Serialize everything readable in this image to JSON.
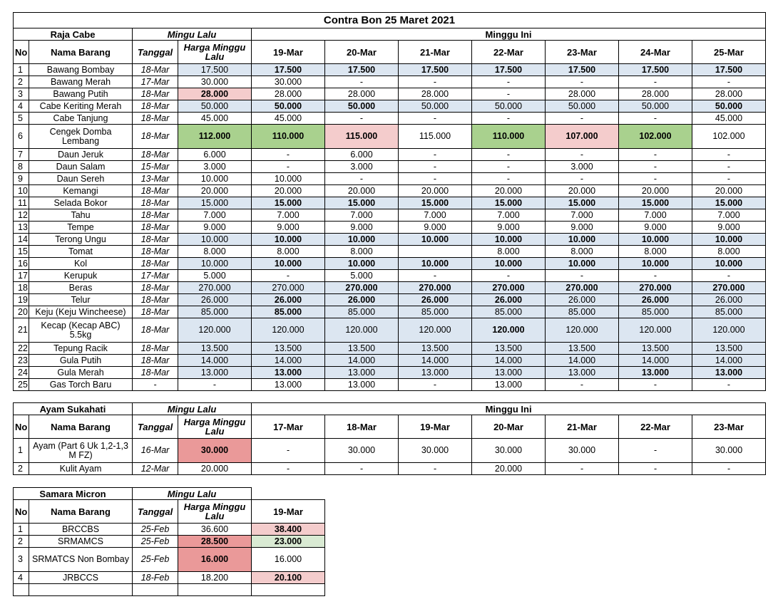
{
  "title": "Contra Bon 25 Maret 2021",
  "t1": {
    "supplier": "Raja Cabe",
    "mingu_lalu": "Mingu Lalu",
    "minggu_ini": "Minggu Ini",
    "headers": [
      "No",
      "Nama Barang",
      "Tanggal",
      "Harga Minggu Lalu",
      "19-Mar",
      "20-Mar",
      "21-Mar",
      "22-Mar",
      "23-Mar",
      "24-Mar",
      "25-Mar"
    ],
    "rows": [
      {
        "no": "1",
        "name": "Bawang Bombay",
        "tgl": "18-Mar",
        "cells": [
          "17.500",
          "17.500",
          "17.500",
          "17.500",
          "17.500",
          "17.500",
          "17.500",
          "17.500"
        ],
        "bg": [
          "blue",
          "blue",
          "blue",
          "blue",
          "blue",
          "blue",
          "blue",
          "blue"
        ],
        "bold": [
          0,
          1,
          1,
          1,
          1,
          1,
          1,
          1
        ]
      },
      {
        "no": "2",
        "name": "Bawang Merah",
        "tgl": "17-Mar",
        "cells": [
          "30.000",
          "30.000",
          "-",
          "-",
          "-",
          "-",
          "-",
          "-"
        ],
        "bg": [
          "",
          "",
          "",
          "",
          "",
          "",
          "",
          ""
        ],
        "bold": [
          0,
          0,
          0,
          0,
          0,
          0,
          0,
          0
        ]
      },
      {
        "no": "3",
        "name": "Bawang Putih",
        "tgl": "18-Mar",
        "cells": [
          "28.000",
          "28.000",
          "28.000",
          "28.000",
          "-",
          "28.000",
          "28.000",
          "28.000"
        ],
        "bg": [
          "pink",
          "",
          "",
          "",
          "",
          "",
          "",
          ""
        ],
        "bold": [
          1,
          0,
          0,
          0,
          0,
          0,
          0,
          0
        ]
      },
      {
        "no": "4",
        "name": "Cabe Keriting Merah",
        "tgl": "18-Mar",
        "cells": [
          "50.000",
          "50.000",
          "50.000",
          "50.000",
          "50.000",
          "50.000",
          "50.000",
          "50.000"
        ],
        "bg": [
          "blue",
          "blue",
          "blue",
          "blue",
          "blue",
          "blue",
          "blue",
          "blue"
        ],
        "bold": [
          0,
          1,
          1,
          0,
          0,
          0,
          0,
          1
        ]
      },
      {
        "no": "5",
        "name": "Cabe Tanjung",
        "tgl": "18-Mar",
        "cells": [
          "45.000",
          "45.000",
          "-",
          "-",
          "-",
          "-",
          "-",
          "45.000"
        ],
        "bg": [
          "",
          "",
          "",
          "",
          "",
          "",
          "",
          ""
        ],
        "bold": [
          0,
          0,
          0,
          0,
          0,
          0,
          0,
          0
        ]
      },
      {
        "no": "6",
        "name": "Cengek Domba Lembang",
        "tgl": "18-Mar",
        "cells": [
          "112.000",
          "110.000",
          "115.000",
          "115.000",
          "110.000",
          "107.000",
          "102.000",
          "102.000"
        ],
        "bg": [
          "green",
          "green",
          "pink",
          "",
          "green",
          "pink",
          "green",
          ""
        ],
        "bold": [
          1,
          1,
          1,
          0,
          1,
          1,
          1,
          0
        ],
        "tall": true
      },
      {
        "no": "7",
        "name": "Daun Jeruk",
        "tgl": "18-Mar",
        "cells": [
          "6.000",
          "-",
          "6.000",
          "-",
          "-",
          "-",
          "-",
          "-"
        ],
        "bg": [
          "",
          "",
          "",
          "",
          "",
          "",
          "",
          ""
        ],
        "bold": [
          0,
          0,
          0,
          0,
          0,
          0,
          0,
          0
        ]
      },
      {
        "no": "8",
        "name": "Daun Salam",
        "tgl": "15-Mar",
        "cells": [
          "3.000",
          "-",
          "3.000",
          "-",
          "-",
          "3.000",
          "-",
          "-"
        ],
        "bg": [
          "",
          "",
          "",
          "",
          "",
          "",
          "",
          ""
        ],
        "bold": [
          0,
          0,
          0,
          0,
          0,
          0,
          0,
          0
        ]
      },
      {
        "no": "9",
        "name": "Daun Sereh",
        "tgl": "13-Mar",
        "cells": [
          "10.000",
          "10.000",
          "-",
          "-",
          "-",
          "-",
          "-",
          "-"
        ],
        "bg": [
          "",
          "",
          "",
          "",
          "",
          "",
          "",
          ""
        ],
        "bold": [
          0,
          0,
          0,
          0,
          0,
          0,
          0,
          0
        ]
      },
      {
        "no": "10",
        "name": "Kemangi",
        "tgl": "18-Mar",
        "cells": [
          "20.000",
          "20.000",
          "20.000",
          "20.000",
          "20.000",
          "20.000",
          "20.000",
          "20.000"
        ],
        "bg": [
          "",
          "",
          "",
          "",
          "",
          "",
          "",
          ""
        ],
        "bold": [
          0,
          0,
          0,
          0,
          0,
          0,
          0,
          0
        ]
      },
      {
        "no": "11",
        "name": "Selada Bokor",
        "tgl": "18-Mar",
        "cells": [
          "15.000",
          "15.000",
          "15.000",
          "15.000",
          "15.000",
          "15.000",
          "15.000",
          "15.000"
        ],
        "bg": [
          "blue",
          "blue",
          "blue",
          "blue",
          "blue",
          "blue",
          "blue",
          "blue"
        ],
        "bold": [
          0,
          1,
          1,
          1,
          1,
          1,
          1,
          1
        ]
      },
      {
        "no": "12",
        "name": "Tahu",
        "tgl": "18-Mar",
        "cells": [
          "7.000",
          "7.000",
          "7.000",
          "7.000",
          "7.000",
          "7.000",
          "7.000",
          "7.000"
        ],
        "bg": [
          "",
          "",
          "",
          "",
          "",
          "",
          "",
          ""
        ],
        "bold": [
          0,
          0,
          0,
          0,
          0,
          0,
          0,
          0
        ]
      },
      {
        "no": "13",
        "name": "Tempe",
        "tgl": "18-Mar",
        "cells": [
          "9.000",
          "9.000",
          "9.000",
          "9.000",
          "9.000",
          "9.000",
          "9.000",
          "9.000"
        ],
        "bg": [
          "",
          "",
          "",
          "",
          "",
          "",
          "",
          ""
        ],
        "bold": [
          0,
          0,
          0,
          0,
          0,
          0,
          0,
          0
        ]
      },
      {
        "no": "14",
        "name": "Terong Ungu",
        "tgl": "18-Mar",
        "cells": [
          "10.000",
          "10.000",
          "10.000",
          "10.000",
          "10.000",
          "10.000",
          "10.000",
          "10.000"
        ],
        "bg": [
          "blue",
          "blue",
          "blue",
          "blue",
          "blue",
          "blue",
          "blue",
          "blue"
        ],
        "bold": [
          0,
          1,
          1,
          1,
          1,
          1,
          1,
          1
        ]
      },
      {
        "no": "15",
        "name": "Tomat",
        "tgl": "18-Mar",
        "cells": [
          "8.000",
          "8.000",
          "8.000",
          "",
          "8.000",
          "8.000",
          "8.000",
          "8.000"
        ],
        "bg": [
          "",
          "",
          "",
          "",
          "",
          "",
          "",
          ""
        ],
        "bold": [
          0,
          0,
          0,
          0,
          0,
          0,
          0,
          0
        ]
      },
      {
        "no": "16",
        "name": "Kol",
        "tgl": "18-Mar",
        "cells": [
          "10.000",
          "10.000",
          "10.000",
          "10.000",
          "10.000",
          "10.000",
          "10.000",
          "10.000"
        ],
        "bg": [
          "blue",
          "blue",
          "blue",
          "blue",
          "blue",
          "blue",
          "blue",
          "blue"
        ],
        "bold": [
          0,
          1,
          1,
          1,
          1,
          1,
          1,
          1
        ]
      },
      {
        "no": "17",
        "name": "Kerupuk",
        "tgl": "17-Mar",
        "cells": [
          "5.000",
          "-",
          "5.000",
          "-",
          "-",
          "-",
          "-",
          "-"
        ],
        "bg": [
          "",
          "",
          "",
          "",
          "",
          "",
          "",
          ""
        ],
        "bold": [
          0,
          0,
          0,
          0,
          0,
          0,
          0,
          0
        ]
      },
      {
        "no": "18",
        "name": "Beras",
        "tgl": "18-Mar",
        "cells": [
          "270.000",
          "270.000",
          "270.000",
          "270.000",
          "270.000",
          "270.000",
          "270.000",
          "270.000"
        ],
        "bg": [
          "blue",
          "blue",
          "blue",
          "blue",
          "blue",
          "blue",
          "blue",
          "blue"
        ],
        "bold": [
          0,
          0,
          1,
          1,
          1,
          1,
          1,
          1
        ]
      },
      {
        "no": "19",
        "name": "Telur",
        "tgl": "18-Mar",
        "cells": [
          "26.000",
          "26.000",
          "26.000",
          "26.000",
          "26.000",
          "26.000",
          "26.000",
          "26.000"
        ],
        "bg": [
          "blue",
          "blue",
          "blue",
          "blue",
          "blue",
          "blue",
          "blue",
          "blue"
        ],
        "bold": [
          0,
          1,
          1,
          1,
          1,
          0,
          1,
          0
        ]
      },
      {
        "no": "20",
        "name": "Keju (Keju Wincheese)",
        "tgl": "18-Mar",
        "cells": [
          "85.000",
          "85.000",
          "85.000",
          "85.000",
          "85.000",
          "85.000",
          "85.000",
          "85.000"
        ],
        "bg": [
          "blue",
          "blue",
          "blue",
          "blue",
          "blue",
          "blue",
          "blue",
          "blue"
        ],
        "bold": [
          0,
          1,
          0,
          0,
          0,
          0,
          0,
          0
        ]
      },
      {
        "no": "21",
        "name": "Kecap (Kecap ABC) 5.5kg",
        "tgl": "18-Mar",
        "cells": [
          "120.000",
          "120.000",
          "120.000",
          "120.000",
          "120.000",
          "120.000",
          "120.000",
          "120.000"
        ],
        "bg": [
          "blue",
          "blue",
          "blue",
          "blue",
          "blue",
          "blue",
          "blue",
          "blue"
        ],
        "bold": [
          0,
          0,
          0,
          0,
          1,
          0,
          0,
          0
        ],
        "tall": true
      },
      {
        "no": "22",
        "name": "Tepung Racik",
        "tgl": "18-Mar",
        "cells": [
          "13.500",
          "13.500",
          "13.500",
          "13.500",
          "13.500",
          "13.500",
          "13.500",
          "13.500"
        ],
        "bg": [
          "blue",
          "blue",
          "blue",
          "blue",
          "blue",
          "blue",
          "blue",
          "blue"
        ],
        "bold": [
          0,
          0,
          0,
          0,
          0,
          0,
          0,
          0
        ]
      },
      {
        "no": "23",
        "name": "Gula Putih",
        "tgl": "18-Mar",
        "cells": [
          "14.000",
          "14.000",
          "14.000",
          "14.000",
          "14.000",
          "14.000",
          "14.000",
          "14.000"
        ],
        "bg": [
          "blue",
          "blue",
          "blue",
          "blue",
          "blue",
          "blue",
          "blue",
          "blue"
        ],
        "bold": [
          0,
          0,
          0,
          0,
          0,
          0,
          0,
          0
        ]
      },
      {
        "no": "24",
        "name": "Gula Merah",
        "tgl": "18-Mar",
        "cells": [
          "13.000",
          "13.000",
          "13.000",
          "13.000",
          "13.000",
          "13.000",
          "13.000",
          "13.000"
        ],
        "bg": [
          "blue",
          "blue",
          "blue",
          "blue",
          "blue",
          "blue",
          "blue",
          "blue"
        ],
        "bold": [
          0,
          1,
          0,
          0,
          0,
          0,
          1,
          1
        ]
      },
      {
        "no": "25",
        "name": "Gas Torch Baru",
        "tgl": "-",
        "cells": [
          "-",
          "13.000",
          "13.000",
          "-",
          "13.000",
          "-",
          "-",
          "-"
        ],
        "bg": [
          "",
          "",
          "",
          "",
          "",
          "",
          "",
          ""
        ],
        "bold": [
          0,
          0,
          0,
          0,
          0,
          0,
          0,
          0
        ]
      }
    ]
  },
  "t2": {
    "supplier": "Ayam Sukahati",
    "mingu_lalu": "Mingu Lalu",
    "minggu_ini": "Minggu Ini",
    "headers": [
      "No",
      "Nama Barang",
      "Tanggal",
      "Harga Minggu Lalu",
      "17-Mar",
      "18-Mar",
      "19-Mar",
      "20-Mar",
      "21-Mar",
      "22-Mar",
      "23-Mar"
    ],
    "rows": [
      {
        "no": "1",
        "name": "Ayam (Part 6 Uk 1,2-1,3 M FZ)",
        "tgl": "16-Mar",
        "cells": [
          "30.000",
          "-",
          "30.000",
          "30.000",
          "30.000",
          "30.000",
          "-",
          "30.000"
        ],
        "bg": [
          "red",
          "",
          "",
          "",
          "",
          "",
          "",
          ""
        ],
        "bold": [
          1,
          0,
          0,
          0,
          0,
          0,
          0,
          0
        ],
        "tall": true
      },
      {
        "no": "2",
        "name": "Kulit Ayam",
        "tgl": "12-Mar",
        "cells": [
          "20.000",
          "-",
          "-",
          "-",
          "20.000",
          "-",
          "-",
          "-"
        ],
        "bg": [
          "",
          "",
          "",
          "",
          "",
          "",
          "",
          ""
        ],
        "bold": [
          0,
          0,
          0,
          0,
          0,
          0,
          0,
          0
        ]
      }
    ]
  },
  "t3": {
    "supplier": "Samara Micron",
    "mingu_lalu": "Mingu Lalu",
    "headers": [
      "No",
      "Nama Barang",
      "Tanggal",
      "Harga Minggu Lalu",
      "19-Mar"
    ],
    "rows": [
      {
        "no": "1",
        "name": "BRCCBS",
        "tgl": "25-Feb",
        "cells": [
          "36.600",
          "38.400"
        ],
        "bg": [
          "",
          "pink"
        ],
        "bold": [
          0,
          1
        ]
      },
      {
        "no": "2",
        "name": "SRMAMCS",
        "tgl": "25-Feb",
        "cells": [
          "28.500",
          "23.000"
        ],
        "bg": [
          "red",
          "lgreen"
        ],
        "bold": [
          1,
          1
        ]
      },
      {
        "no": "3",
        "name": "SRMATCS Non Bombay",
        "tgl": "25-Feb",
        "cells": [
          "16.000",
          "16.000"
        ],
        "bg": [
          "red",
          ""
        ],
        "bold": [
          1,
          0
        ],
        "tall": true
      },
      {
        "no": "4",
        "name": "JRBCCS",
        "tgl": "18-Feb",
        "cells": [
          "18.200",
          "20.100"
        ],
        "bg": [
          "",
          "pink"
        ],
        "bold": [
          0,
          1
        ]
      }
    ]
  }
}
